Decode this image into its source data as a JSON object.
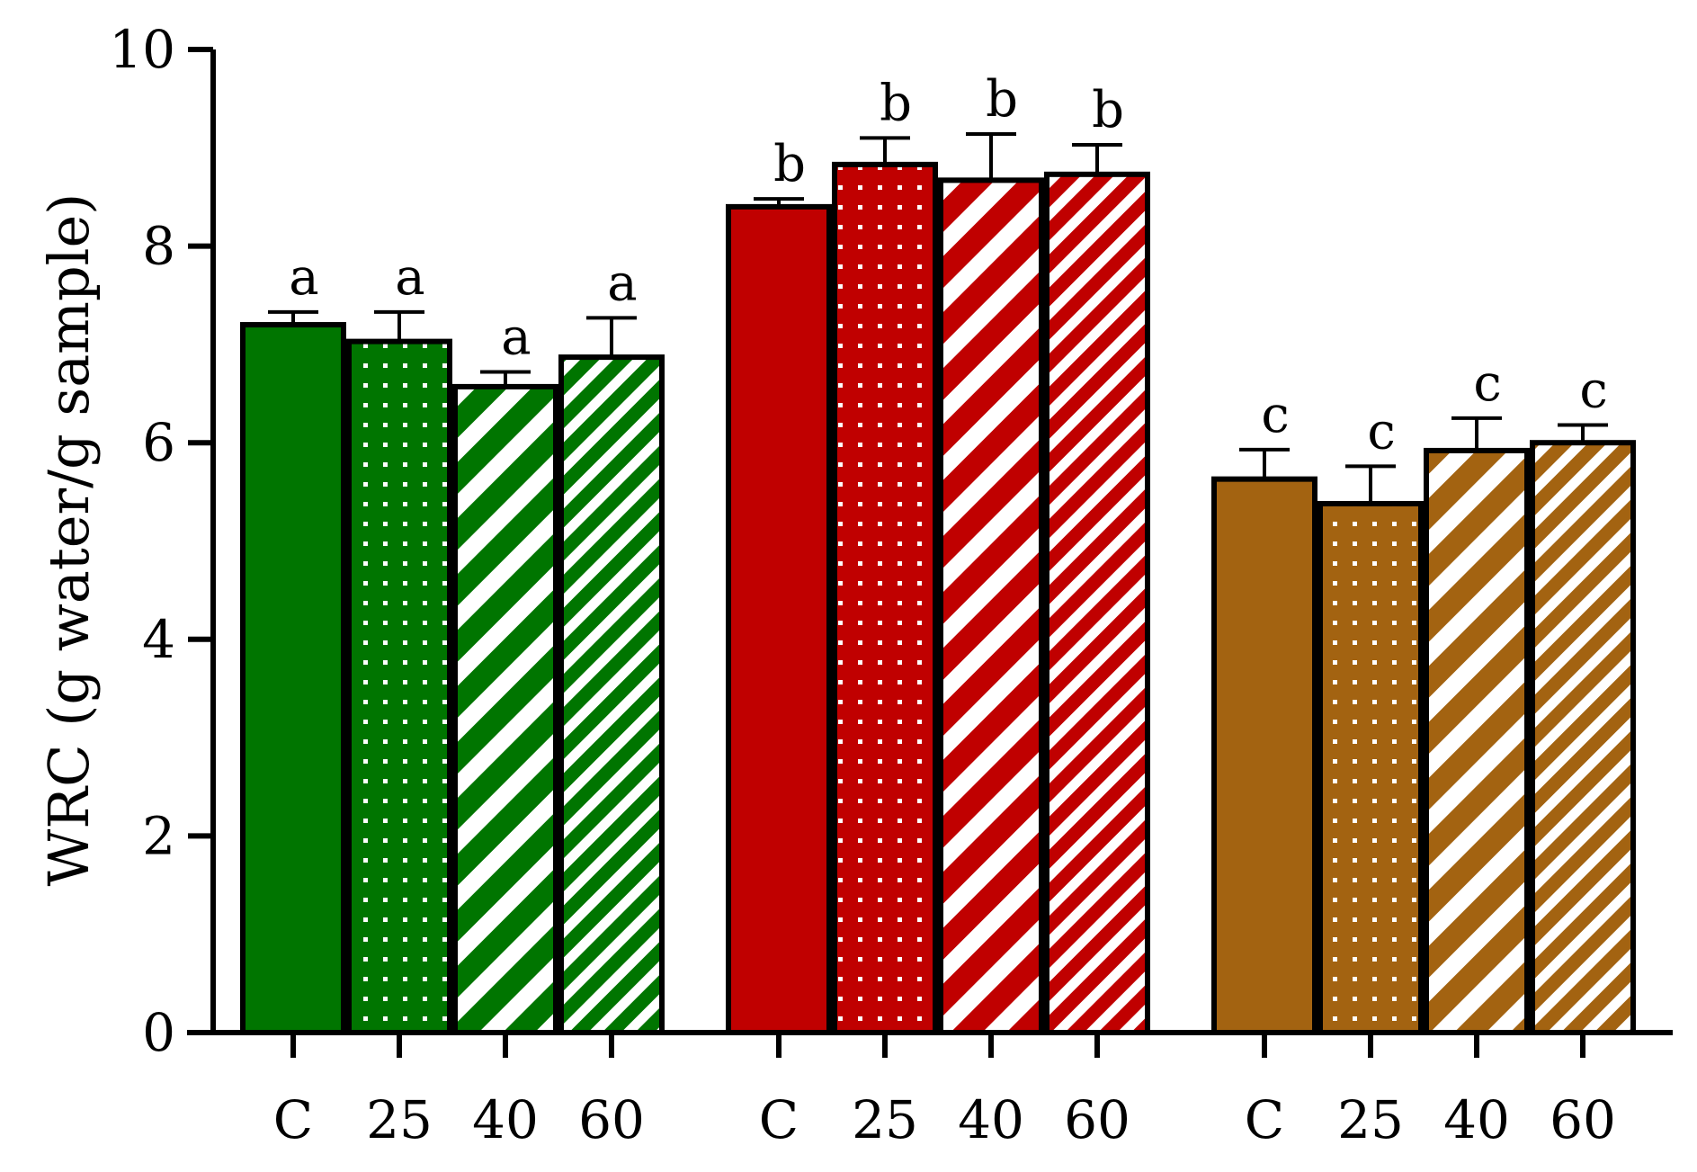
{
  "chart_data": {
    "type": "bar",
    "ylabel": "WRC (g water/g sample)",
    "ylim": [
      0,
      10
    ],
    "yticks": [
      0,
      2,
      4,
      6,
      8,
      10
    ],
    "grid": false,
    "legend": "none",
    "categories": [
      "C",
      "25",
      "40",
      "60"
    ],
    "pattern_names": [
      "solid",
      "dots",
      "wide-diagonal-stripes",
      "narrow-diagonal-stripes"
    ],
    "groups": [
      {
        "color": "#007500",
        "bars": [
          {
            "category": "C",
            "value": 7.2,
            "error": 0.13,
            "letter": "a"
          },
          {
            "category": "25",
            "value": 7.03,
            "error": 0.3,
            "letter": "a"
          },
          {
            "category": "40",
            "value": 6.57,
            "error": 0.15,
            "letter": "a"
          },
          {
            "category": "60",
            "value": 6.87,
            "error": 0.4,
            "letter": "a"
          }
        ]
      },
      {
        "color": "#C00000",
        "bars": [
          {
            "category": "C",
            "value": 8.4,
            "error": 0.08,
            "letter": "b"
          },
          {
            "category": "25",
            "value": 8.83,
            "error": 0.27,
            "letter": "b"
          },
          {
            "category": "40",
            "value": 8.67,
            "error": 0.47,
            "letter": "b"
          },
          {
            "category": "60",
            "value": 8.73,
            "error": 0.3,
            "letter": "b"
          }
        ]
      },
      {
        "color": "#A36311",
        "bars": [
          {
            "category": "C",
            "value": 5.63,
            "error": 0.3,
            "letter": "c"
          },
          {
            "category": "25",
            "value": 5.38,
            "error": 0.38,
            "letter": "c"
          },
          {
            "category": "40",
            "value": 5.92,
            "error": 0.33,
            "letter": "c"
          },
          {
            "category": "60",
            "value": 6.0,
            "error": 0.18,
            "letter": "c"
          }
        ]
      }
    ]
  }
}
